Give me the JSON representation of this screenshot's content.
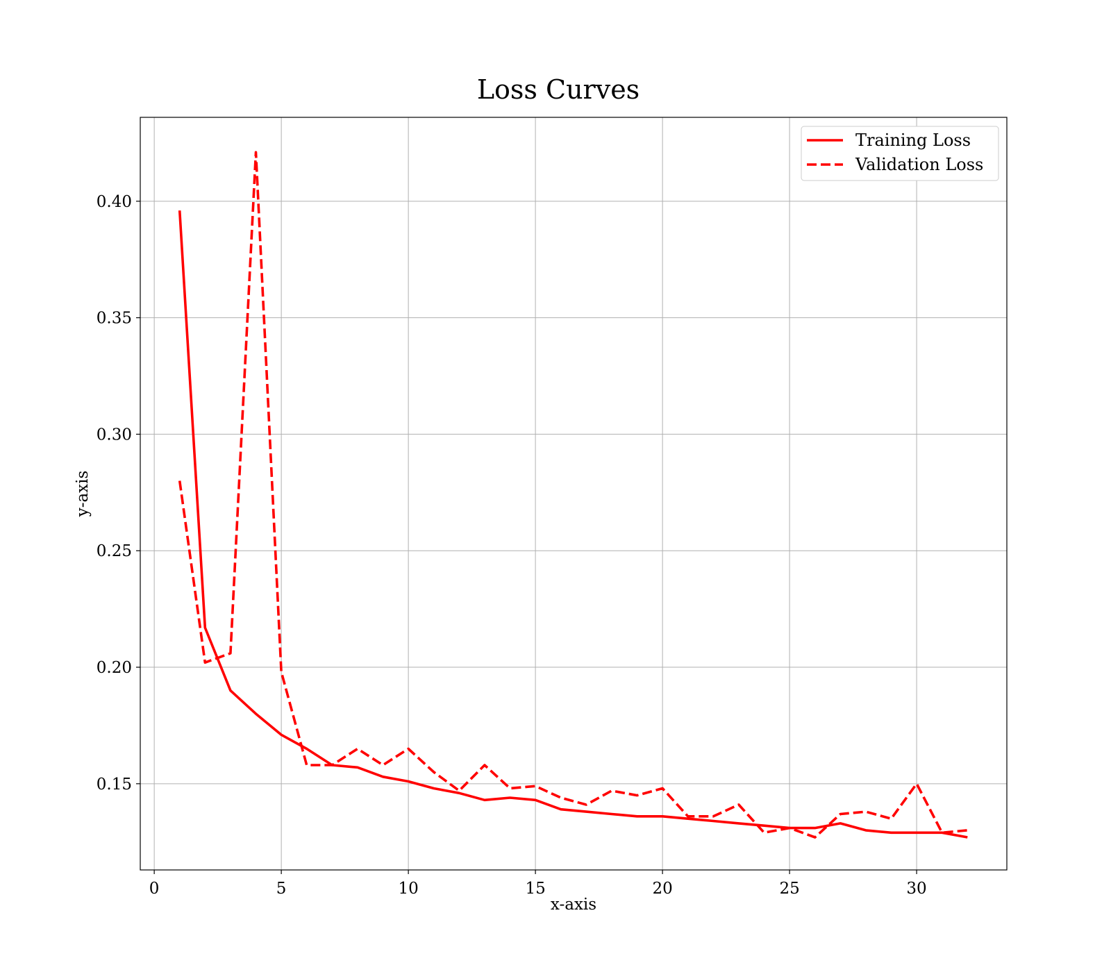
{
  "chart_data": {
    "type": "line",
    "title": "Loss Curves",
    "xlabel": "x-axis",
    "ylabel": "y-axis",
    "xlim": [
      -0.55,
      33.55
    ],
    "ylim": [
      0.113,
      0.436
    ],
    "xticks": [
      0,
      5,
      10,
      15,
      20,
      25,
      30
    ],
    "xtick_labels": [
      "0",
      "5",
      "10",
      "15",
      "20",
      "25",
      "30"
    ],
    "yticks": [
      0.15,
      0.2,
      0.25,
      0.3,
      0.35,
      0.4
    ],
    "ytick_labels": [
      "0.15",
      "0.20",
      "0.25",
      "0.30",
      "0.35",
      "0.40"
    ],
    "grid": true,
    "legend_position": "top-right",
    "x": [
      1,
      2,
      3,
      4,
      5,
      6,
      7,
      8,
      9,
      10,
      11,
      12,
      13,
      14,
      15,
      16,
      17,
      18,
      19,
      20,
      21,
      22,
      23,
      24,
      25,
      26,
      27,
      28,
      29,
      30,
      31,
      32
    ],
    "series": [
      {
        "name": "Training Loss",
        "style": "solid",
        "color": "#ff0000",
        "values": [
          0.396,
          0.217,
          0.19,
          0.18,
          0.171,
          0.165,
          0.158,
          0.157,
          0.153,
          0.151,
          0.148,
          0.146,
          0.143,
          0.144,
          0.143,
          0.139,
          0.138,
          0.137,
          0.136,
          0.136,
          0.135,
          0.134,
          0.133,
          0.132,
          0.131,
          0.131,
          0.133,
          0.13,
          0.129,
          0.129,
          0.129,
          0.127
        ]
      },
      {
        "name": "Validation Loss",
        "style": "dashed",
        "color": "#ff0000",
        "values": [
          0.28,
          0.202,
          0.206,
          0.421,
          0.198,
          0.158,
          0.158,
          0.165,
          0.158,
          0.165,
          0.155,
          0.147,
          0.158,
          0.148,
          0.149,
          0.144,
          0.141,
          0.147,
          0.145,
          0.148,
          0.136,
          0.136,
          0.141,
          0.129,
          0.131,
          0.127,
          0.137,
          0.138,
          0.135,
          0.15,
          0.129,
          0.13
        ]
      }
    ]
  }
}
